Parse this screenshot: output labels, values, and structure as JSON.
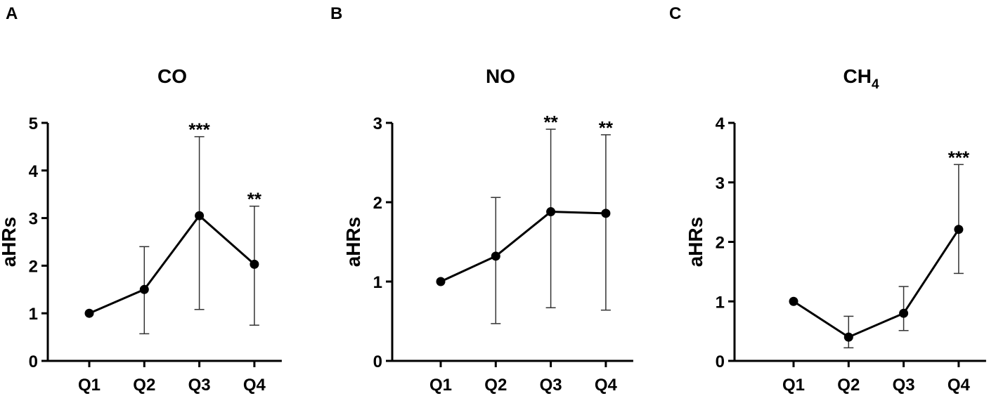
{
  "chart_data": [
    {
      "panel": "A",
      "type": "line",
      "title": "CO",
      "title_subscript": "",
      "xlabel": "",
      "ylabel": "aHRs",
      "categories": [
        "Q1",
        "Q2",
        "Q3",
        "Q4"
      ],
      "values": [
        1.0,
        1.5,
        3.05,
        2.03
      ],
      "error_low": [
        null,
        0.57,
        1.08,
        0.75
      ],
      "error_high": [
        null,
        2.4,
        4.71,
        3.25
      ],
      "significance": [
        "",
        "",
        "***",
        "**"
      ],
      "ylim": [
        0,
        5
      ],
      "yticks": [
        0,
        1,
        2,
        3,
        4,
        5
      ],
      "grid": false,
      "legend": "none"
    },
    {
      "panel": "B",
      "type": "line",
      "title": "NO",
      "title_subscript": "",
      "xlabel": "",
      "ylabel": "aHRs",
      "categories": [
        "Q1",
        "Q2",
        "Q3",
        "Q4"
      ],
      "values": [
        1.0,
        1.32,
        1.88,
        1.86
      ],
      "error_low": [
        null,
        0.47,
        0.67,
        0.64
      ],
      "error_high": [
        null,
        2.06,
        2.92,
        2.85
      ],
      "significance": [
        "",
        "",
        "**",
        "**"
      ],
      "ylim": [
        0,
        3
      ],
      "yticks": [
        0,
        1,
        2,
        3
      ],
      "grid": false,
      "legend": "none"
    },
    {
      "panel": "C",
      "type": "line",
      "title": "CH",
      "title_subscript": "4",
      "xlabel": "",
      "ylabel": "aHRs",
      "categories": [
        "Q1",
        "Q2",
        "Q3",
        "Q4"
      ],
      "values": [
        1.0,
        0.4,
        0.8,
        2.21
      ],
      "error_low": [
        null,
        0.22,
        0.51,
        1.47
      ],
      "error_high": [
        null,
        0.75,
        1.25,
        3.3
      ],
      "significance": [
        "",
        "",
        "",
        "***"
      ],
      "ylim": [
        0,
        4
      ],
      "yticks": [
        0,
        1,
        2,
        3,
        4
      ],
      "grid": false,
      "legend": "none"
    }
  ],
  "colors": {
    "line": "#000000",
    "marker": "#000000",
    "error_bar": "#333333",
    "axis": "#000000"
  }
}
